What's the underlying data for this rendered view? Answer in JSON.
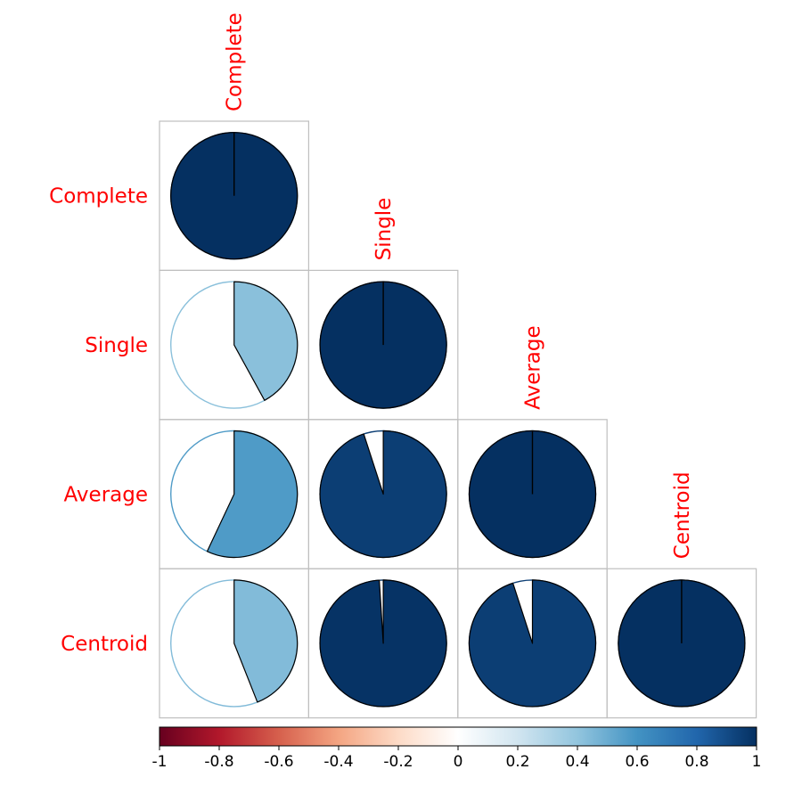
{
  "chart_data": {
    "type": "correlation-matrix",
    "method": "pie",
    "layout": "lower-triangle",
    "variables": [
      "Complete",
      "Single",
      "Average",
      "Centroid"
    ],
    "matrix": [
      [
        1.0,
        0.42,
        0.57,
        0.44
      ],
      [
        0.42,
        1.0,
        0.95,
        0.99
      ],
      [
        0.57,
        0.95,
        1.0,
        0.95
      ],
      [
        0.44,
        0.99,
        0.95,
        1.0
      ]
    ],
    "label_color": "#ff0000",
    "colorbar": {
      "ticks": [
        "-1",
        "-0.8",
        "-0.6",
        "-0.4",
        "-0.2",
        "0",
        "0.2",
        "0.4",
        "0.6",
        "0.8",
        "1"
      ],
      "range": [
        -1,
        1
      ],
      "stops": [
        [
          -1.0,
          "#67001f"
        ],
        [
          -0.8,
          "#b2182b"
        ],
        [
          -0.6,
          "#d6604d"
        ],
        [
          -0.4,
          "#f4a582"
        ],
        [
          -0.2,
          "#fddbc7"
        ],
        [
          0.0,
          "#ffffff"
        ],
        [
          0.2,
          "#d1e5f0"
        ],
        [
          0.4,
          "#92c5de"
        ],
        [
          0.6,
          "#4393c3"
        ],
        [
          0.8,
          "#2166ac"
        ],
        [
          1.0,
          "#053061"
        ]
      ]
    }
  }
}
